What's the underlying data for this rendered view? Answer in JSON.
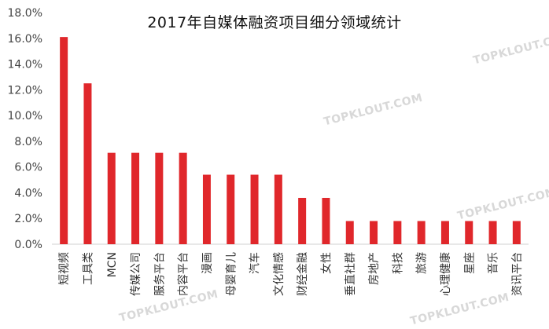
{
  "chart_data": {
    "type": "bar",
    "title": "2017年自媒体融资项目细分领域统计",
    "categories": [
      "短视频",
      "工具类",
      "MCN",
      "传媒公司",
      "服务平台",
      "内容平台",
      "漫画",
      "母婴育儿",
      "汽车",
      "文化情感",
      "财经金融",
      "女性",
      "垂直社群",
      "房地产",
      "科技",
      "旅游",
      "心理健康",
      "星座",
      "音乐",
      "资讯平台"
    ],
    "values": [
      16.1,
      12.5,
      7.1,
      7.1,
      7.1,
      7.1,
      5.4,
      5.4,
      5.4,
      5.4,
      3.6,
      3.6,
      1.8,
      1.8,
      1.8,
      1.8,
      1.8,
      1.8,
      1.8,
      1.8
    ],
    "ylim": [
      0,
      18
    ],
    "yticks": [
      "0.0%",
      "2.0%",
      "4.0%",
      "6.0%",
      "8.0%",
      "10.0%",
      "12.0%",
      "14.0%",
      "16.0%",
      "18.0%"
    ],
    "grid": false,
    "bar_color": "#e0272b"
  },
  "watermark": "TOPKLOUT.COM"
}
